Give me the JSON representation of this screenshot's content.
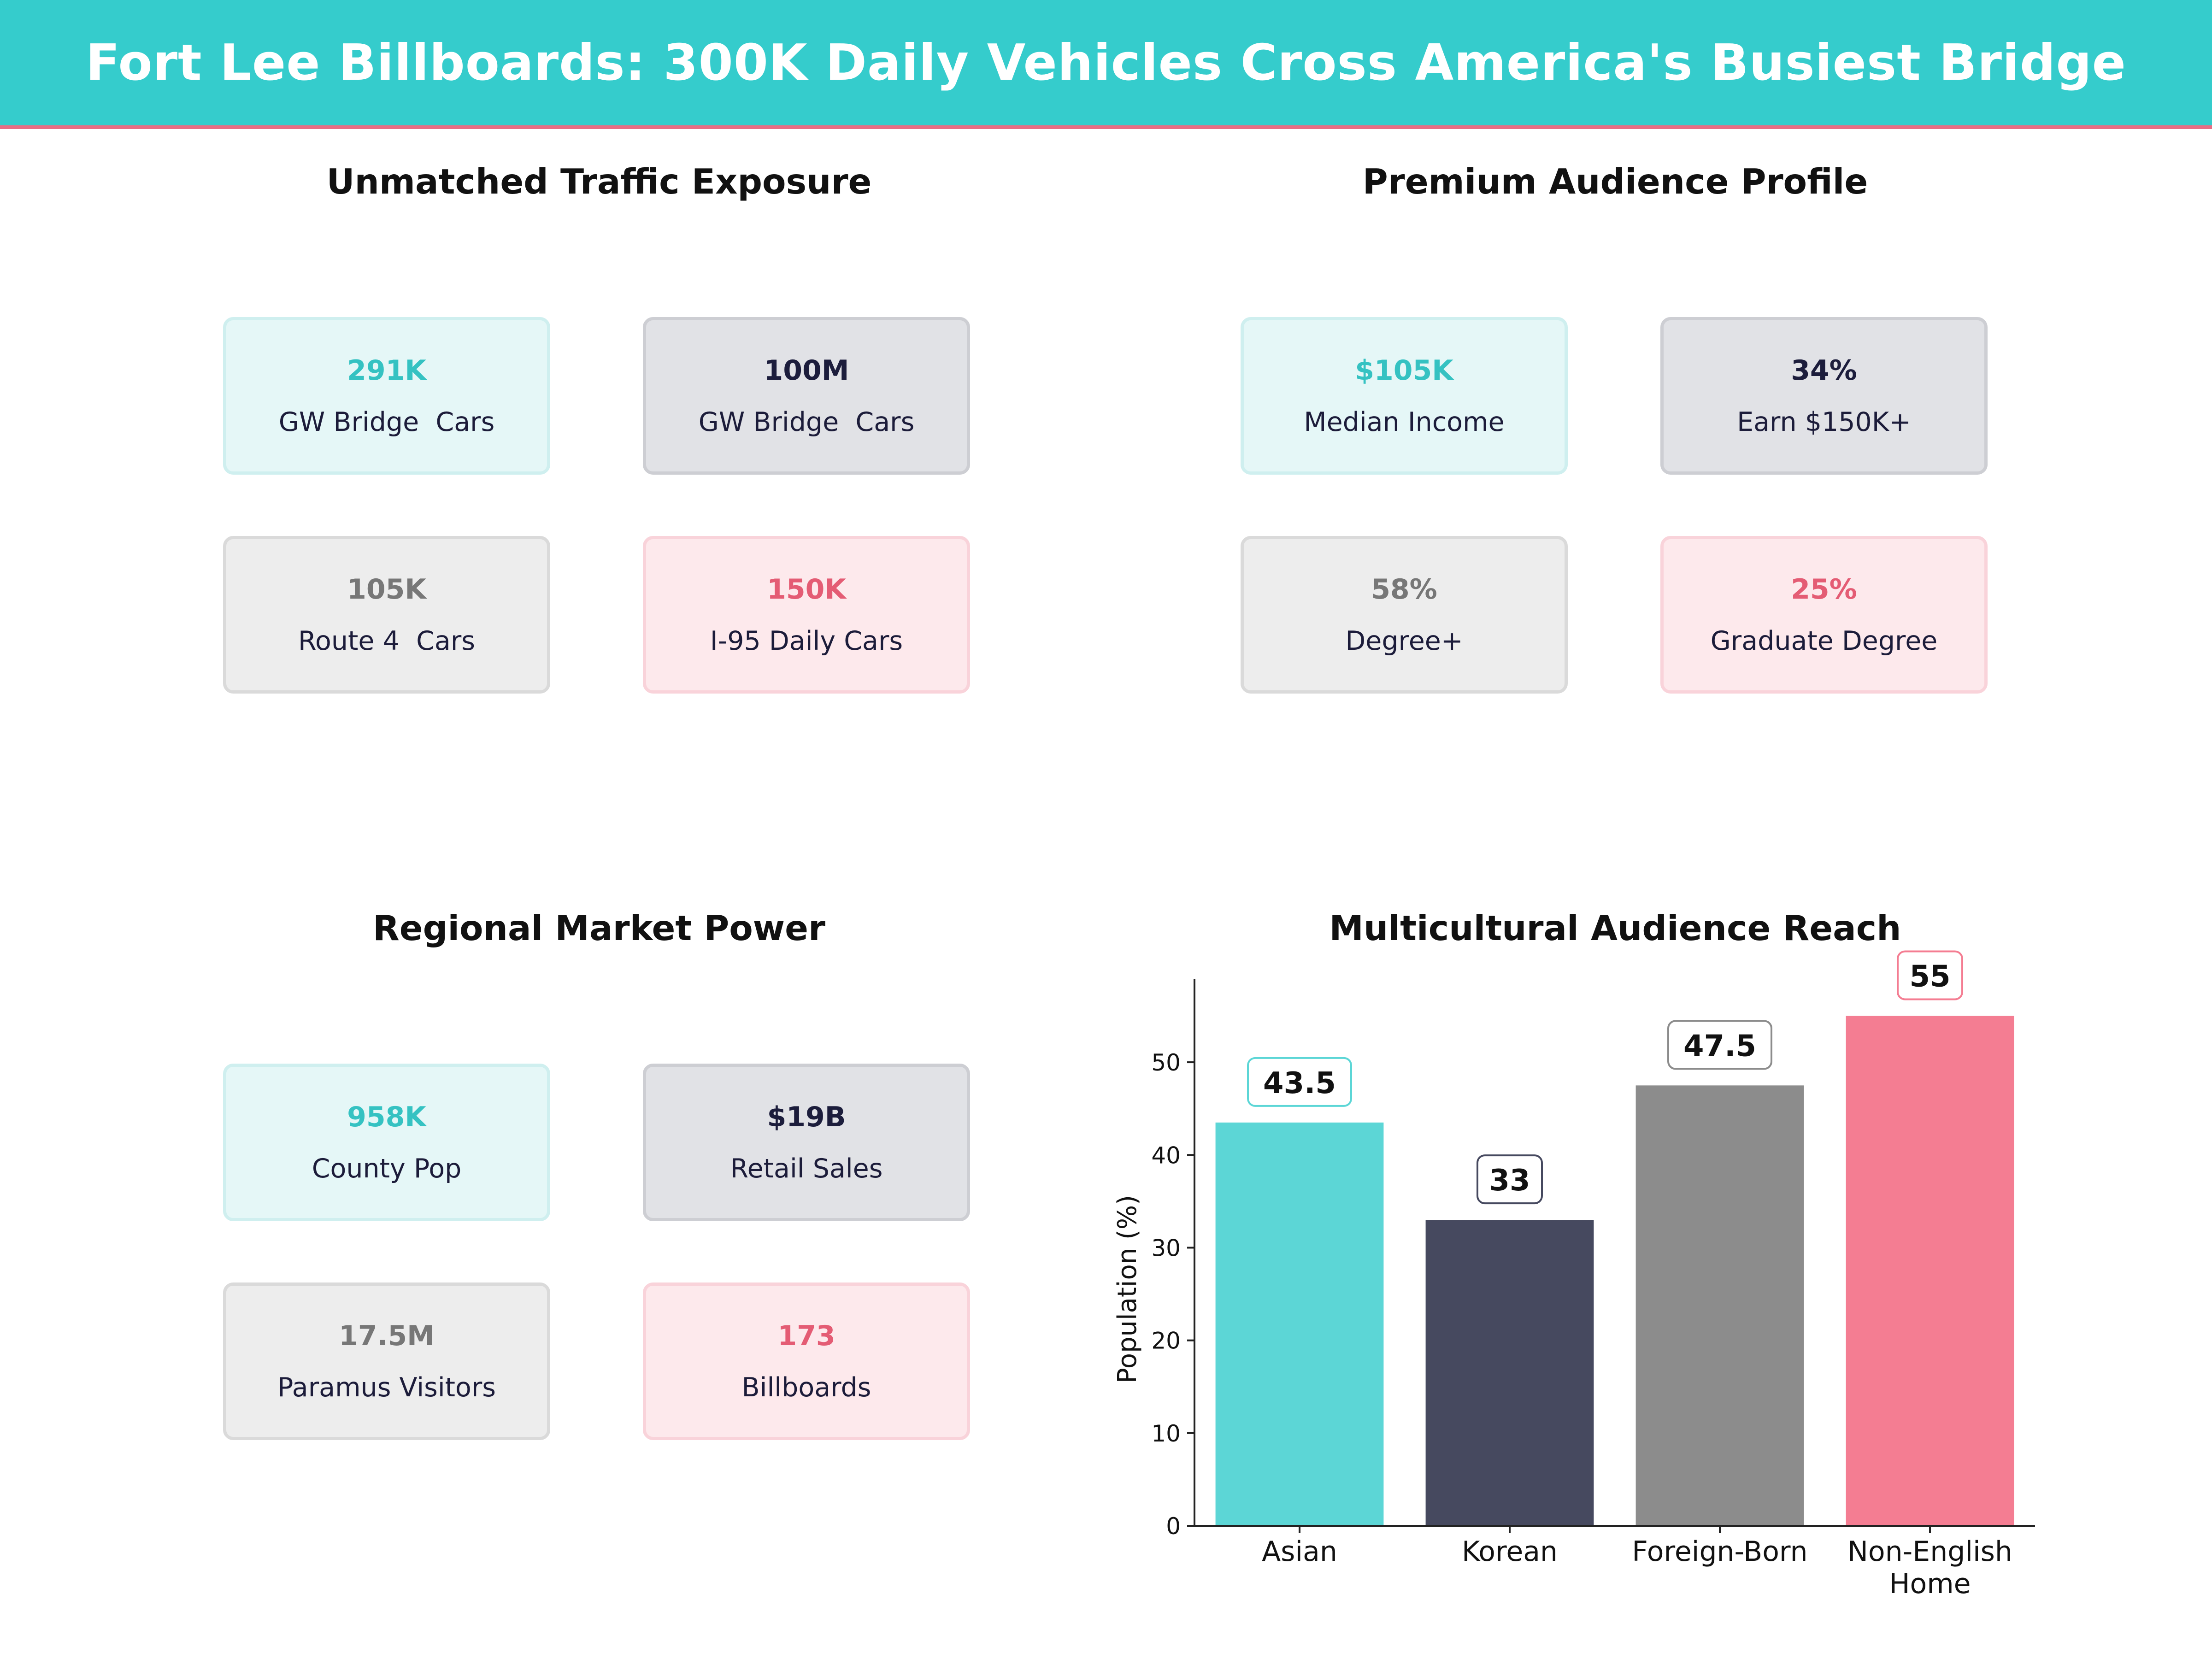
{
  "header": {
    "title": "Fort Lee Billboards: 300K Daily Vehicles Cross America's Busiest Bridge"
  },
  "colors": {
    "banner": "#35cccc",
    "banner_accent": "#e96d84",
    "teal": "#5cd6d6",
    "navy": "#46495f",
    "gray": "#8c8c8c",
    "pink": "#f47d92"
  },
  "traffic": {
    "title": "Unmatched Traffic Exposure",
    "cards": [
      {
        "value": "291K",
        "label": "GW Bridge  Cars"
      },
      {
        "value": "100M",
        "label": "GW Bridge  Cars"
      },
      {
        "value": "105K",
        "label": "Route 4  Cars"
      },
      {
        "value": "150K",
        "label": "I-95 Daily Cars"
      }
    ]
  },
  "audience": {
    "title": "Premium Audience Profile",
    "cards": [
      {
        "value": "$105K",
        "label": "Median Income"
      },
      {
        "value": "34%",
        "label": "Earn $150K+"
      },
      {
        "value": "58%",
        "label": "Degree+"
      },
      {
        "value": "25%",
        "label": "Graduate Degree"
      }
    ]
  },
  "market": {
    "title": "Regional Market Power",
    "cards": [
      {
        "value": "958K",
        "label": "County Pop"
      },
      {
        "value": "$19B",
        "label": "Retail Sales"
      },
      {
        "value": "17.5M",
        "label": "Paramus Visitors"
      },
      {
        "value": "173",
        "label": "Billboards"
      }
    ]
  },
  "chart_data": {
    "type": "bar",
    "title": "Multicultural Audience Reach",
    "categories": [
      "Asian",
      "Korean",
      "Foreign-Born",
      "Non-English Home"
    ],
    "values": [
      43.5,
      33,
      47.5,
      55
    ],
    "value_labels": [
      "43.5",
      "33",
      "47.5",
      "55"
    ],
    "colors": [
      "#5cd6d6",
      "#46495f",
      "#8c8c8c",
      "#f47d92"
    ],
    "xlabel": "",
    "ylabel": "Population (%)",
    "ylim": [
      0,
      59
    ],
    "yticks": [
      0,
      10,
      20,
      30,
      40,
      50
    ],
    "ytick_labels": [
      "0",
      "10",
      "20",
      "30",
      "40",
      "50"
    ],
    "grid": false
  }
}
